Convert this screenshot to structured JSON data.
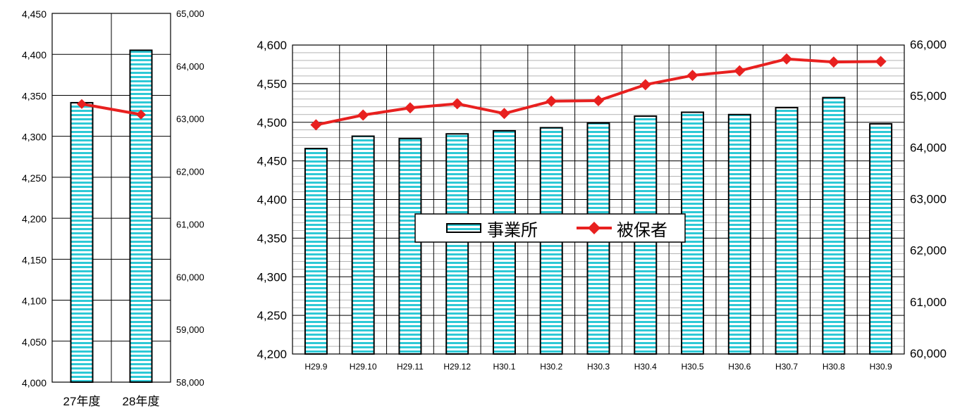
{
  "chart_data": [
    {
      "type": "bar",
      "categories": [
        "27年度",
        "28年度"
      ],
      "series": [
        {
          "name": "事業所",
          "type": "bar",
          "axis": "left",
          "values": [
            4341,
            4405
          ]
        },
        {
          "name": "被保者",
          "type": "line",
          "axis": "right",
          "values": [
            63280,
            63080
          ]
        }
      ],
      "ylim": [
        4000,
        4450
      ],
      "ytick_labels": [
        "4,000",
        "4,050",
        "4,100",
        "4,150",
        "4,200",
        "4,250",
        "4,300",
        "4,350",
        "4,400",
        "4,450"
      ],
      "y2lim": [
        58000,
        65000
      ],
      "y2tick_labels": [
        "58,000",
        "59,000",
        "60,000",
        "61,000",
        "62,000",
        "63,000",
        "64,000",
        "65,000"
      ],
      "grid": true
    },
    {
      "type": "bar",
      "categories": [
        "H29.9",
        "H29.10",
        "H29.11",
        "H29.12",
        "H30.1",
        "H30.2",
        "H30.3",
        "H30.4",
        "H30.5",
        "H30.6",
        "H30.7",
        "H30.8",
        "H30.9"
      ],
      "series": [
        {
          "name": "事業所",
          "type": "bar",
          "axis": "left",
          "values": [
            4466,
            4482,
            4479,
            4485,
            4489,
            4493,
            4499,
            4508,
            4513,
            4510,
            4519,
            4532,
            4498
          ]
        },
        {
          "name": "被保者",
          "type": "line",
          "axis": "right",
          "values": [
            64450,
            64640,
            64780,
            64860,
            64670,
            64910,
            64920,
            65230,
            65410,
            65500,
            65730,
            65670,
            65680
          ]
        }
      ],
      "ylim": [
        4200,
        4600
      ],
      "ytick_labels": [
        "4,200",
        "4,250",
        "4,300",
        "4,350",
        "4,400",
        "4,450",
        "4,500",
        "4,550",
        "4,600"
      ],
      "y2lim": [
        60000,
        66000
      ],
      "y2tick_labels": [
        "60,000",
        "61,000",
        "62,000",
        "63,000",
        "64,000",
        "65,000",
        "66,000"
      ],
      "grid": true,
      "legend": {
        "placement": "center",
        "entries": [
          "事業所",
          "被保者"
        ]
      }
    }
  ],
  "colors": {
    "bar_fill": "#2ec9d6",
    "bar_stripe": "#ffffff",
    "line": "#e8201f",
    "grid": "#000000"
  }
}
